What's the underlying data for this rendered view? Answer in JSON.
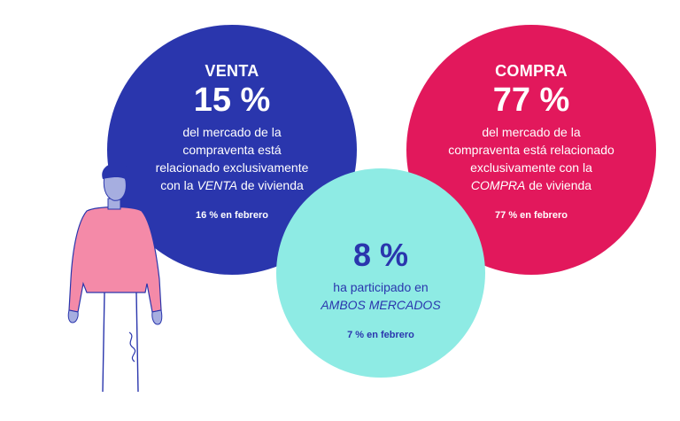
{
  "colors": {
    "venta": "#2a36ad",
    "compra": "#e2185c",
    "ambos": "#8eebe4",
    "ambos_text": "#2a36ad"
  },
  "venta": {
    "label": "VENTA",
    "percent": "15 %",
    "line1": "del mercado de la",
    "line2": "compraventa está",
    "line3": "relacionado exclusivamente",
    "line4_pre": "con la ",
    "line4_em": "VENTA",
    "line4_post": " de vivienda",
    "previous": "16 % en febrero"
  },
  "compra": {
    "label": "COMPRA",
    "percent": "77 %",
    "line1": "del mercado de la",
    "line2": "compraventa está relacionado",
    "line3": "exclusivamente con la",
    "line4_em": "COMPRA",
    "line4_post": " de vivienda",
    "previous": "77 % en febrero"
  },
  "ambos": {
    "percent": "8 %",
    "line1": "ha participado en",
    "line2_em": "AMBOS MERCADOS",
    "previous": "7 % en febrero"
  },
  "illustration": {
    "icon": "person-illustration-icon"
  }
}
